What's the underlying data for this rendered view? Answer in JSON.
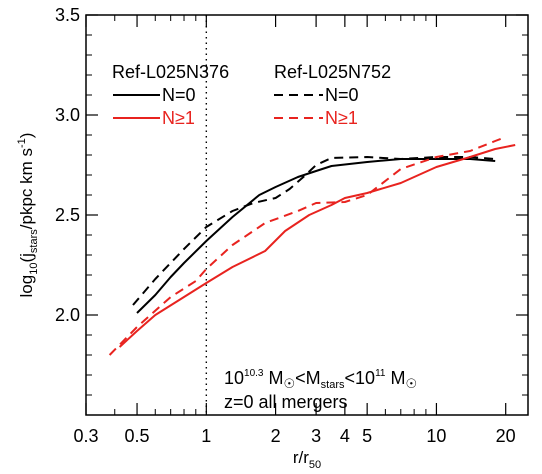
{
  "chart_data": {
    "type": "line",
    "title": "",
    "xlabel": {
      "main": "r/r",
      "sub": "50"
    },
    "ylabel": {
      "pre": "log",
      "pre_sub": "10",
      "mid": "(j",
      "mid_sub": "stars",
      "post": "/pkpc km s",
      "sup": "-1",
      "end": ")"
    },
    "x_scale": "log",
    "xlim": [
      0.3,
      25
    ],
    "ylim": [
      1.5,
      3.5
    ],
    "x_ticks": [
      {
        "value": 0.3,
        "label": "0.3"
      },
      {
        "value": 0.5,
        "label": "0.5"
      },
      {
        "value": 1,
        "label": "1"
      },
      {
        "value": 2,
        "label": "2"
      },
      {
        "value": 3,
        "label": "3"
      },
      {
        "value": 4,
        "label": "4"
      },
      {
        "value": 5,
        "label": "5"
      },
      {
        "value": 10,
        "label": "10"
      },
      {
        "value": 20,
        "label": "20"
      }
    ],
    "y_ticks": [
      {
        "value": 2.0,
        "label": "2.0"
      },
      {
        "value": 2.5,
        "label": "2.5"
      },
      {
        "value": 3.0,
        "label": "3.0"
      },
      {
        "value": 3.5,
        "label": "3.5"
      }
    ],
    "vline": {
      "x": 1,
      "style": "dotted"
    },
    "legend": {
      "placement": "top-left",
      "headers": [
        "Ref-L025N376",
        "Ref-L025N752"
      ],
      "rows": [
        "N=0",
        "N≥1"
      ]
    },
    "annotations": {
      "line1": {
        "a": "10",
        "a_sup": "10.3",
        "b": " M",
        "b_sun": "☉",
        "c": "<M",
        "c_sub": "stars",
        "d": "<10",
        "d_sup": "11",
        "e": " M",
        "e_sun": "☉"
      },
      "line2": "z=0 all mergers"
    },
    "series": [
      {
        "resolution": "Ref-L025N376",
        "label": "N=0",
        "color": "#000000",
        "dash": "solid",
        "x": [
          0.5,
          0.6,
          0.7,
          0.8,
          1.0,
          1.3,
          1.7,
          2.0,
          2.5,
          3.0,
          3.5,
          5.0,
          7.0,
          10.0,
          14.0,
          18.0
        ],
        "y": [
          2.01,
          2.1,
          2.19,
          2.26,
          2.37,
          2.49,
          2.6,
          2.64,
          2.69,
          2.72,
          2.745,
          2.765,
          2.78,
          2.78,
          2.78,
          2.77
        ]
      },
      {
        "resolution": "Ref-L025N752",
        "label": "N=0",
        "color": "#000000",
        "dash": "dashed",
        "x": [
          0.48,
          0.6,
          0.8,
          1.0,
          1.3,
          1.6,
          2.0,
          2.3,
          2.7,
          3.0,
          3.5,
          5.0,
          7.0,
          10.0,
          14.0,
          18.0
        ],
        "y": [
          2.05,
          2.18,
          2.33,
          2.44,
          2.52,
          2.56,
          2.585,
          2.63,
          2.7,
          2.75,
          2.785,
          2.79,
          2.78,
          2.79,
          2.79,
          2.78
        ]
      },
      {
        "resolution": "Ref-L025N376",
        "label": "N≥1",
        "color": "#e8231f",
        "dash": "solid",
        "x": [
          0.42,
          0.5,
          0.6,
          0.8,
          1.0,
          1.3,
          1.8,
          2.2,
          2.8,
          3.5,
          4.0,
          5.0,
          7.0,
          10.0,
          14.0,
          18.0,
          22.0
        ],
        "y": [
          1.84,
          1.92,
          2.0,
          2.09,
          2.16,
          2.24,
          2.32,
          2.42,
          2.5,
          2.55,
          2.585,
          2.61,
          2.66,
          2.74,
          2.79,
          2.83,
          2.85
        ]
      },
      {
        "resolution": "Ref-L025N752",
        "label": "N≥1",
        "color": "#e8231f",
        "dash": "dashed",
        "x": [
          0.38,
          0.5,
          0.7,
          0.9,
          1.0,
          1.3,
          1.8,
          2.5,
          3.0,
          4.0,
          5.0,
          7.0,
          10.0,
          14.0,
          18.0,
          20.0
        ],
        "y": [
          1.8,
          1.94,
          2.09,
          2.17,
          2.23,
          2.35,
          2.46,
          2.52,
          2.56,
          2.565,
          2.6,
          2.73,
          2.79,
          2.82,
          2.87,
          2.89
        ]
      }
    ]
  }
}
